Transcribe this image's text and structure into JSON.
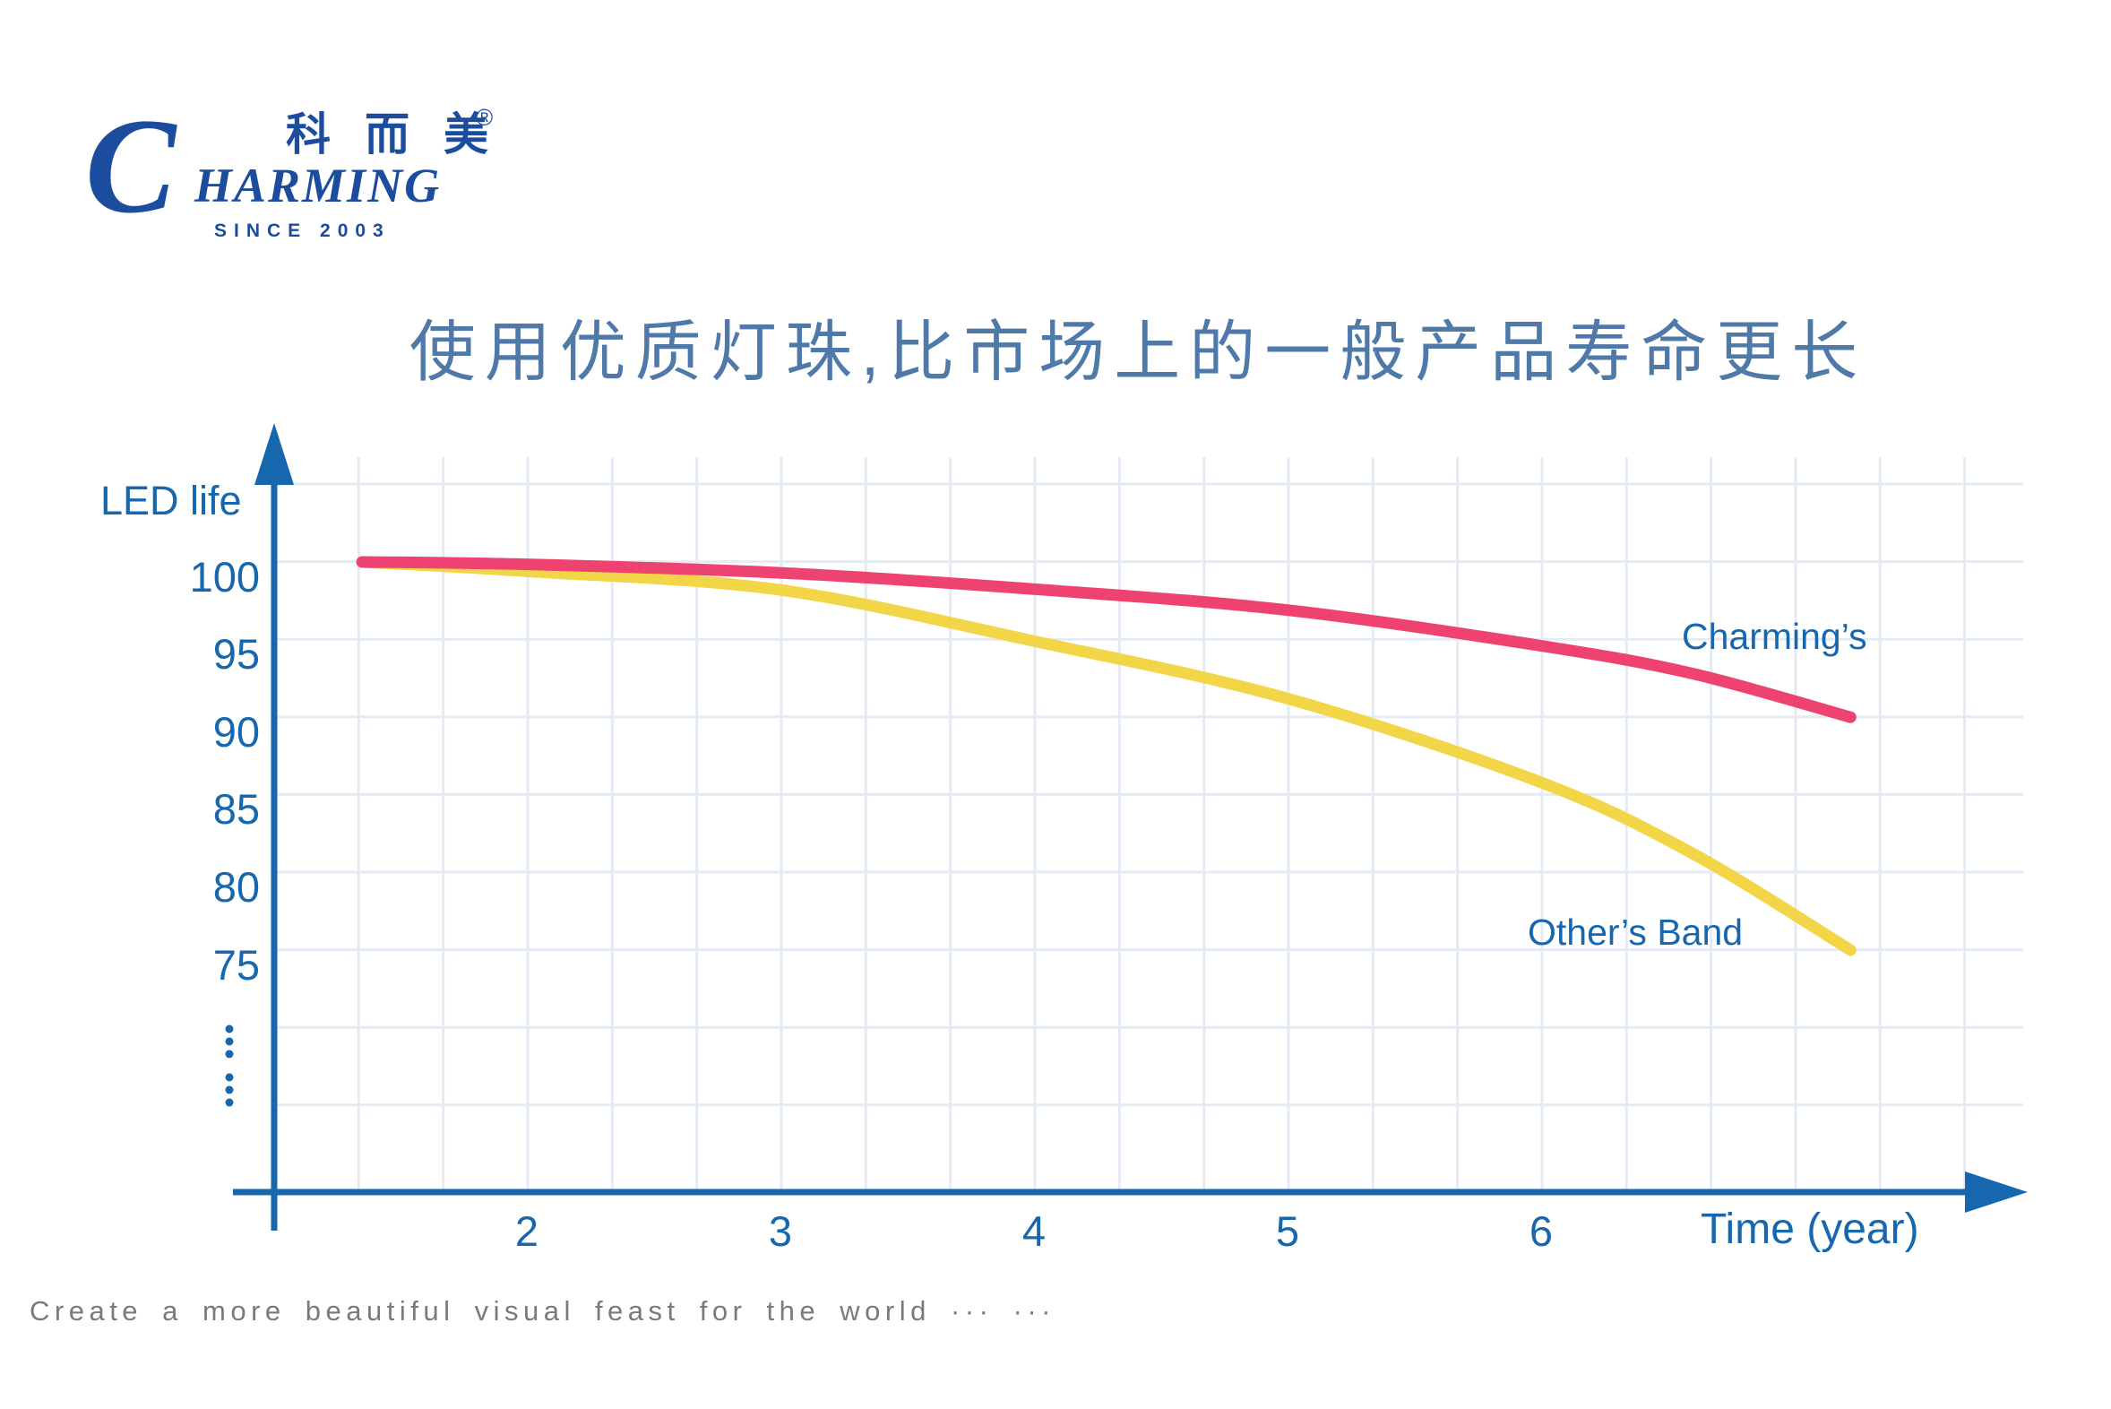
{
  "logo": {
    "initial": "C",
    "wordmark_rest": "HARMING",
    "chinese_name": "科而美",
    "registered_mark": "®",
    "since": "SINCE 2003"
  },
  "tagline": {
    "text": "Create a more beautiful visual feast for the world ··· ···"
  },
  "colors": {
    "brand_blue": "#1B4C9E",
    "axis_blue": "#1767AE",
    "title_blue": "#4E79A8",
    "grid_line": "#E4EBF4",
    "charming_pink": "#EE4371",
    "others_yellow": "#F3D647",
    "tagline_gray": "#7A7A7A"
  },
  "chart_data": {
    "type": "line",
    "title": "使用优质灯珠,比市场上的一般产品寿命更长",
    "xlabel": "Time (year)",
    "ylabel": "LED life",
    "xticks": [
      2,
      3,
      4,
      5,
      6
    ],
    "yticks": [
      100,
      95,
      90,
      85,
      80,
      75
    ],
    "xlim": [
      1,
      7.5
    ],
    "ylim_shown": [
      75,
      100
    ],
    "grid": true,
    "legend_position": "inline-right",
    "series": [
      {
        "name": "Charming’s",
        "color": "#EE4371",
        "points": [
          [
            1.35,
            100
          ],
          [
            2,
            99.85
          ],
          [
            3,
            99.3
          ],
          [
            4,
            98.25
          ],
          [
            5,
            96.9
          ],
          [
            6,
            94.6
          ],
          [
            6.6,
            92.8
          ],
          [
            7.22,
            90
          ]
        ]
      },
      {
        "name": "Other’s Band",
        "color": "#F3D647",
        "points": [
          [
            1.35,
            100
          ],
          [
            2,
            99.4
          ],
          [
            3,
            98.2
          ],
          [
            4,
            94.9
          ],
          [
            5,
            91.2
          ],
          [
            6,
            85.8
          ],
          [
            6.6,
            81.2
          ],
          [
            7.22,
            75
          ]
        ]
      }
    ]
  }
}
